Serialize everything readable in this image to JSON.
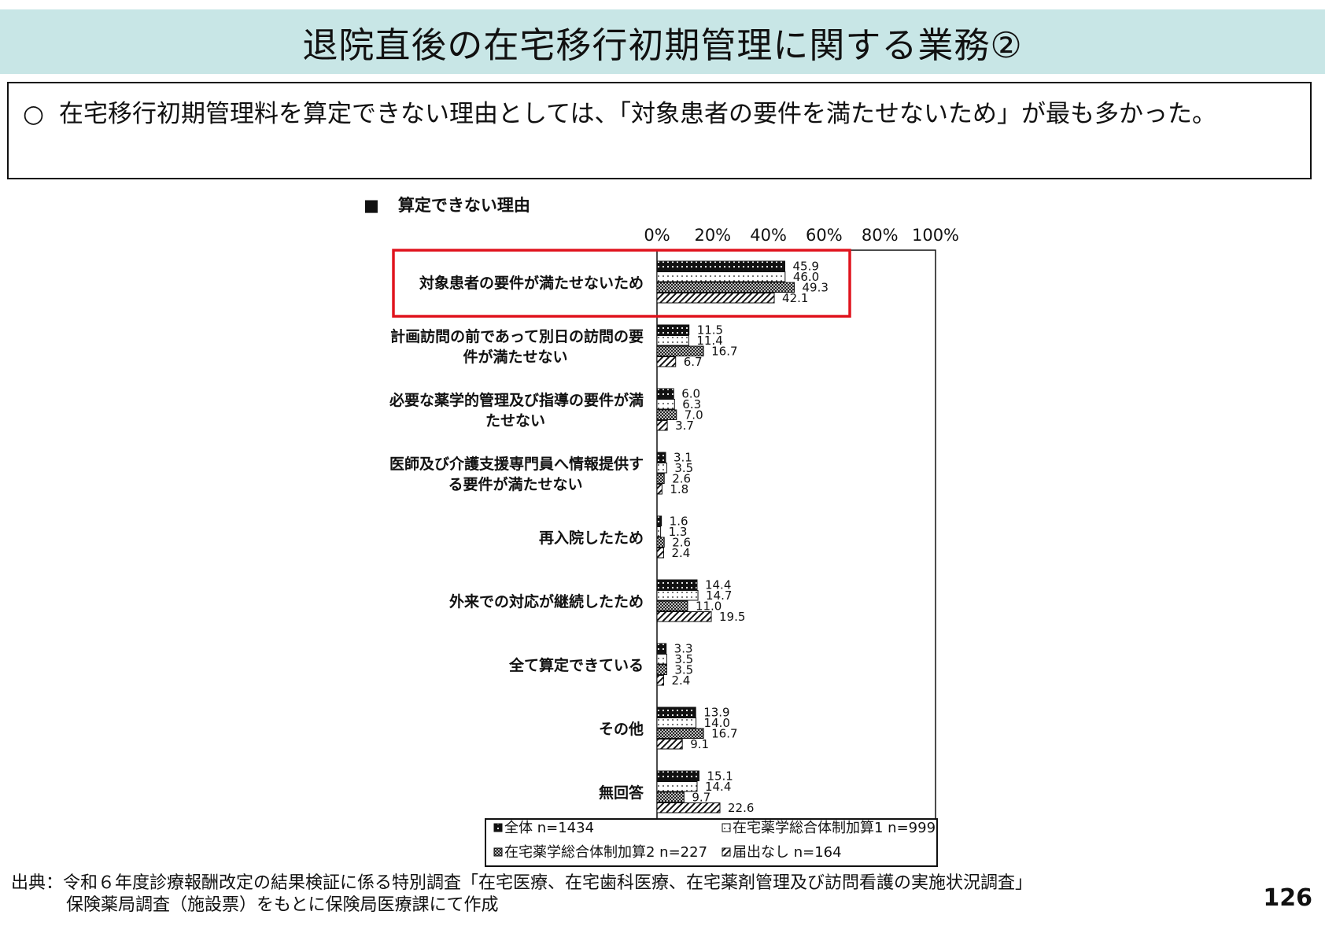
{
  "header": {
    "title": "退院直後の在宅移行初期管理に関する業務②"
  },
  "summary": {
    "bullet": "○",
    "text": "在宅移行初期管理料を算定できない理由としては、「対象患者の要件を満たせないため」が最も多かった。"
  },
  "chart_heading": {
    "marker": "■",
    "text": "算定できない理由"
  },
  "chart_data": {
    "type": "bar",
    "orientation": "horizontal",
    "title": "算定できない理由",
    "xlim": [
      0,
      100
    ],
    "x_ticks": [
      "0%",
      "20%",
      "40%",
      "60%",
      "80%",
      "100%"
    ],
    "categories": [
      [
        "対象患者の要件が満たせないため"
      ],
      [
        "計画訪問の前であって別日の訪問の要",
        "件が満たせない"
      ],
      [
        "必要な薬学的管理及び指導の要件が満",
        "たせない"
      ],
      [
        "医師及び介護支援専門員へ情報提供す",
        "る要件が満たせない"
      ],
      [
        "再入院したため"
      ],
      [
        "外来での対応が継続したため"
      ],
      [
        "全て算定できている"
      ],
      [
        "その他"
      ],
      [
        "無回答"
      ]
    ],
    "series": [
      {
        "name": "全体 n=1434",
        "pattern": "dots-dark",
        "values": [
          45.9,
          11.5,
          6.0,
          3.1,
          1.6,
          14.4,
          3.3,
          13.9,
          15.1
        ]
      },
      {
        "name": "在宅薬学総合体制加算1 n=999",
        "pattern": "dots-light",
        "values": [
          46.0,
          11.4,
          6.3,
          3.5,
          1.3,
          14.7,
          3.5,
          14.0,
          14.4
        ]
      },
      {
        "name": "在宅薬学総合体制加算2 n=227",
        "pattern": "crosshatch",
        "values": [
          49.3,
          16.7,
          7.0,
          2.6,
          2.6,
          11.0,
          3.5,
          16.7,
          9.7
        ]
      },
      {
        "name": "届出なし n=164",
        "pattern": "diagonal",
        "values": [
          42.1,
          6.7,
          3.7,
          1.8,
          2.4,
          19.5,
          2.4,
          9.1,
          22.6
        ]
      }
    ],
    "highlight_category": 0,
    "highlight_color": "#e0141e",
    "legend_placement": "bottom"
  },
  "source": {
    "line1": "出典：令和６年度診療報酬改定の結果検証に係る特別調査「在宅医療、在宅歯科医療、在宅薬剤管理及び訪問看護の実施状況調査」",
    "line2": "保険薬局調査（施設票）をもとに保険局医療課にて作成"
  },
  "page_number": "126"
}
